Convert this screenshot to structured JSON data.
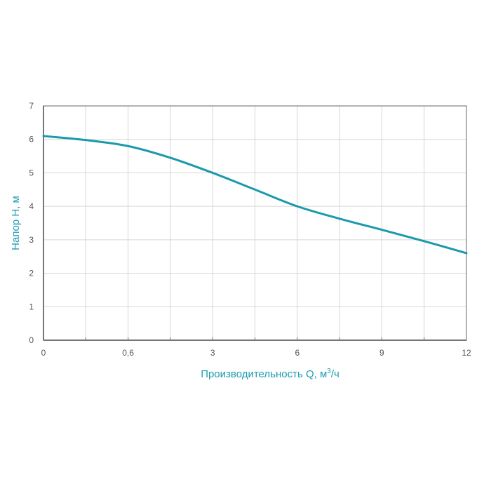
{
  "chart_data": {
    "type": "line",
    "title": "",
    "xlabel": "Производительность Q, м³/ч",
    "xlabel_main": "Производительность Q, м",
    "xlabel_sup": "3",
    "xlabel_tail": "/ч",
    "ylabel": "Напор H, м",
    "xlim": [
      0,
      12
    ],
    "ylim": [
      0,
      7
    ],
    "x_ticks": [
      0,
      0.6,
      3,
      6,
      9,
      12
    ],
    "x_tick_labels": [
      "0",
      "0,6",
      "3",
      "6",
      "9",
      "12"
    ],
    "y_ticks": [
      0,
      1,
      2,
      3,
      4,
      5,
      6,
      7
    ],
    "y_tick_labels": [
      "0",
      "1",
      "2",
      "3",
      "4",
      "5",
      "6",
      "7"
    ],
    "grid": true,
    "legend": "none",
    "line_color": "#1a9aab",
    "label_color": "#1a9cb0",
    "series": [
      {
        "x": [
          0,
          0.3,
          0.6,
          1.8,
          3,
          4.5,
          6,
          7.5,
          9,
          10.5,
          12
        ],
        "y": [
          6.1,
          5.98,
          5.8,
          5.45,
          5.0,
          4.5,
          4.0,
          3.63,
          3.3,
          2.96,
          2.6
        ]
      }
    ]
  }
}
